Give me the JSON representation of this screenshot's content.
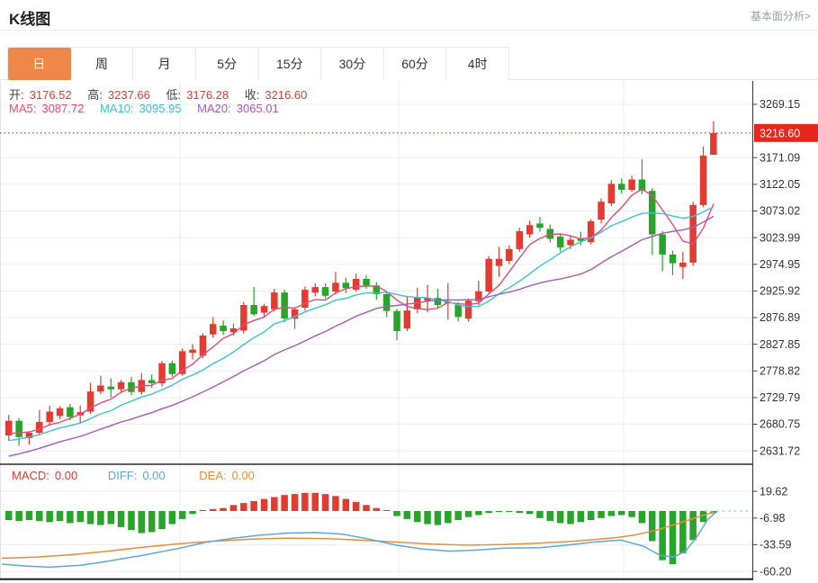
{
  "header": {
    "title": "K线图",
    "link": "基本面分析>"
  },
  "tabs": {
    "items": [
      "日",
      "周",
      "月",
      "5分",
      "15分",
      "30分",
      "60分",
      "4时"
    ],
    "active_index": 0
  },
  "info": {
    "ohlc": [
      {
        "label": "开:",
        "value": "3176.52"
      },
      {
        "label": "高:",
        "value": "3237.66"
      },
      {
        "label": "低:",
        "value": "3176.28"
      },
      {
        "label": "收:",
        "value": "3216.60"
      }
    ],
    "ma": [
      {
        "label": "MA5:",
        "value": "3087.72"
      },
      {
        "label": "MA10:",
        "value": "3095.95"
      },
      {
        "label": "MA20:",
        "value": "3065.01"
      }
    ]
  },
  "macd_info": [
    {
      "label": "MACD:",
      "value": "0.00"
    },
    {
      "label": "DIFF:",
      "value": "0.00"
    },
    {
      "label": "DEA:",
      "value": "0.00"
    }
  ],
  "colors": {
    "up": "#e23b31",
    "down": "#28a42a",
    "price_badge": "#e7271d",
    "ma5": "#e84b76",
    "ma10": "#3bc4d0",
    "ma20": "#a55cb5",
    "diff_line": "#5fa6dc",
    "dea_line": "#ea8c3c",
    "active_tab": "#ef8749",
    "grid": "#ededed",
    "axis": "#444444",
    "value_red": "#e23b31"
  },
  "chart_data": {
    "type": "candlestick",
    "title": "K线图",
    "period": "日",
    "open": 3176.52,
    "high": 3237.66,
    "low": 3176.28,
    "close": 3216.6,
    "current_price": 3216.6,
    "ma_values": {
      "MA5": 3087.72,
      "MA10": 3095.95,
      "MA20": 3065.01
    },
    "price_axis_ticks": [
      3269.15,
      3171.09,
      3122.05,
      3073.02,
      3023.99,
      2974.95,
      2925.92,
      2876.89,
      2827.85,
      2778.82,
      2729.79,
      2680.75,
      2631.72
    ],
    "candles": [
      [
        2660,
        2698,
        2650,
        2687
      ],
      [
        2687,
        2692,
        2641,
        2657
      ],
      [
        2655,
        2668,
        2643,
        2665
      ],
      [
        2665,
        2707,
        2660,
        2685
      ],
      [
        2685,
        2715,
        2680,
        2704
      ],
      [
        2696,
        2714,
        2690,
        2710
      ],
      [
        2712,
        2718,
        2688,
        2694
      ],
      [
        2697,
        2715,
        2682,
        2703
      ],
      [
        2704,
        2757,
        2700,
        2741
      ],
      [
        2741,
        2770,
        2736,
        2752
      ],
      [
        2750,
        2765,
        2730,
        2745
      ],
      [
        2745,
        2762,
        2738,
        2758
      ],
      [
        2758,
        2768,
        2734,
        2740
      ],
      [
        2740,
        2775,
        2735,
        2762
      ],
      [
        2762,
        2772,
        2748,
        2756
      ],
      [
        2756,
        2797,
        2750,
        2793
      ],
      [
        2793,
        2798,
        2768,
        2773
      ],
      [
        2773,
        2820,
        2770,
        2815
      ],
      [
        2812,
        2828,
        2800,
        2818
      ],
      [
        2807,
        2848,
        2802,
        2844
      ],
      [
        2846,
        2878,
        2840,
        2865
      ],
      [
        2862,
        2872,
        2845,
        2852
      ],
      [
        2850,
        2866,
        2844,
        2857
      ],
      [
        2853,
        2906,
        2848,
        2900
      ],
      [
        2900,
        2933,
        2880,
        2883
      ],
      [
        2886,
        2902,
        2878,
        2898
      ],
      [
        2892,
        2930,
        2888,
        2923
      ],
      [
        2923,
        2928,
        2868,
        2875
      ],
      [
        2875,
        2896,
        2856,
        2892
      ],
      [
        2895,
        2934,
        2890,
        2928
      ],
      [
        2923,
        2940,
        2916,
        2933
      ],
      [
        2933,
        2940,
        2912,
        2917
      ],
      [
        2925,
        2961,
        2920,
        2941
      ],
      [
        2941,
        2950,
        2922,
        2931
      ],
      [
        2928,
        2958,
        2924,
        2948
      ],
      [
        2948,
        2955,
        2930,
        2936
      ],
      [
        2936,
        2942,
        2910,
        2920
      ],
      [
        2920,
        2925,
        2878,
        2889
      ],
      [
        2889,
        2893,
        2835,
        2852
      ],
      [
        2857,
        2915,
        2852,
        2890
      ],
      [
        2892,
        2932,
        2885,
        2915
      ],
      [
        2908,
        2937,
        2887,
        2913
      ],
      [
        2913,
        2930,
        2895,
        2900
      ],
      [
        2903,
        2940,
        2873,
        2906
      ],
      [
        2900,
        2905,
        2870,
        2878
      ],
      [
        2875,
        2912,
        2870,
        2908
      ],
      [
        2907,
        2945,
        2900,
        2925
      ],
      [
        2925,
        2990,
        2922,
        2985
      ],
      [
        2972,
        3007,
        2952,
        2985
      ],
      [
        2981,
        3010,
        2975,
        3003
      ],
      [
        3003,
        3042,
        2998,
        3036
      ],
      [
        3030,
        3055,
        3024,
        3047
      ],
      [
        3050,
        3062,
        3035,
        3042
      ],
      [
        3040,
        3048,
        3015,
        3022
      ],
      [
        3026,
        3032,
        2998,
        3006
      ],
      [
        3010,
        3028,
        3003,
        3020
      ],
      [
        3022,
        3035,
        3010,
        3018
      ],
      [
        3016,
        3058,
        3012,
        3054
      ],
      [
        3057,
        3096,
        3050,
        3090
      ],
      [
        3087,
        3130,
        3082,
        3123
      ],
      [
        3123,
        3133,
        3105,
        3112
      ],
      [
        3112,
        3138,
        3108,
        3131
      ],
      [
        3131,
        3168,
        3104,
        3110
      ],
      [
        3110,
        3115,
        2992,
        3030
      ],
      [
        3030,
        3036,
        2962,
        2993
      ],
      [
        2993,
        3000,
        2955,
        2977
      ],
      [
        2970,
        2998,
        2948,
        2978
      ],
      [
        2978,
        3090,
        2972,
        3084
      ],
      [
        3084,
        3192,
        3080,
        3175
      ],
      [
        3176.52,
        3237.66,
        3176.28,
        3216.6
      ]
    ],
    "ma_periods": [
      5,
      10,
      20
    ],
    "ma_seed": [
      2560,
      2566,
      2572,
      2578,
      2584,
      2590,
      2596,
      2602,
      2608,
      2614,
      2620,
      2626,
      2632,
      2638,
      2643,
      2648,
      2652,
      2656,
      2660,
      2664
    ],
    "macd": {
      "labels": {
        "MACD": 0.0,
        "DIFF": 0.0,
        "DEA": 0.0
      },
      "ticks": [
        19.62,
        -6.98,
        -33.59,
        -60.2
      ],
      "histogram": [
        -9,
        -10,
        -9,
        -10,
        -11,
        -10,
        -12,
        -11,
        -13,
        -14,
        -13,
        -16,
        -19,
        -22,
        -21,
        -18,
        -13,
        -8,
        -3,
        1,
        2,
        3,
        6,
        8,
        10,
        12,
        14,
        16,
        17,
        18,
        18,
        17,
        15,
        12,
        9,
        6,
        3,
        1,
        -5,
        -8,
        -11,
        -13,
        -14,
        -12,
        -9,
        -6,
        -4,
        -2,
        -1,
        -1,
        -2,
        -3,
        -7,
        -10,
        -12,
        -13,
        -11,
        -9,
        -7,
        -5,
        -4,
        -6,
        -12,
        -30,
        -49,
        -53,
        -42,
        -29,
        -11,
        -2
      ],
      "diff_points": [
        [
          2,
          -53
        ],
        [
          30,
          -55
        ],
        [
          55,
          -56
        ],
        [
          90,
          -54
        ],
        [
          120,
          -50
        ],
        [
          160,
          -44
        ],
        [
          200,
          -37
        ],
        [
          230,
          -31
        ],
        [
          260,
          -27
        ],
        [
          290,
          -24
        ],
        [
          320,
          -22
        ],
        [
          350,
          -21.5
        ],
        [
          380,
          -23
        ],
        [
          410,
          -28
        ],
        [
          440,
          -34
        ],
        [
          470,
          -38
        ],
        [
          500,
          -40
        ],
        [
          530,
          -39
        ],
        [
          560,
          -37
        ],
        [
          600,
          -36.5
        ],
        [
          630,
          -34
        ],
        [
          660,
          -31
        ],
        [
          690,
          -29
        ],
        [
          715,
          -35
        ],
        [
          733,
          -44
        ],
        [
          748,
          -46
        ],
        [
          762,
          -40
        ],
        [
          775,
          -25
        ],
        [
          786,
          -9
        ],
        [
          795,
          -1.5
        ]
      ],
      "dea_points": [
        [
          2,
          -47
        ],
        [
          40,
          -46
        ],
        [
          80,
          -43.5
        ],
        [
          120,
          -40
        ],
        [
          160,
          -36
        ],
        [
          200,
          -32.5
        ],
        [
          240,
          -30
        ],
        [
          280,
          -28
        ],
        [
          320,
          -27
        ],
        [
          360,
          -27.5
        ],
        [
          400,
          -29
        ],
        [
          440,
          -31
        ],
        [
          480,
          -33
        ],
        [
          520,
          -34
        ],
        [
          560,
          -33.5
        ],
        [
          600,
          -32
        ],
        [
          640,
          -30
        ],
        [
          680,
          -27
        ],
        [
          705,
          -24
        ],
        [
          730,
          -19
        ],
        [
          755,
          -12
        ],
        [
          775,
          -6
        ],
        [
          790,
          -2
        ],
        [
          795,
          -1.5
        ]
      ]
    }
  }
}
